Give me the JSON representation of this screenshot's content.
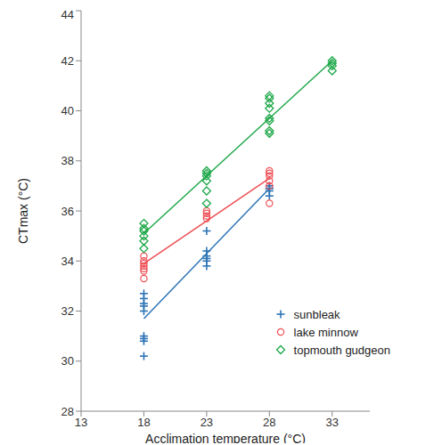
{
  "chart_data": {
    "type": "scatter",
    "x_label": "Acclimation temperature (°C)",
    "y_label": "CTmax (°C)",
    "xlim": [
      13,
      36
    ],
    "xticks": [
      13,
      18,
      23,
      28,
      33
    ],
    "ylim": [
      28,
      44
    ],
    "yticks": [
      28,
      30,
      32,
      34,
      36,
      38,
      40,
      42,
      44
    ],
    "grid": false,
    "legend": "lower right",
    "series": [
      {
        "name": "sunbleak",
        "color": "#2e75b6",
        "marker": "plus",
        "x": [
          18,
          18,
          18,
          18,
          18,
          18,
          18,
          18,
          18,
          23,
          23,
          23,
          23,
          23,
          23,
          28,
          28,
          28,
          28,
          28
        ],
        "values": [
          32.7,
          32.5,
          32.3,
          32.2,
          32.0,
          31.0,
          30.9,
          30.8,
          30.2,
          35.2,
          34.4,
          34.2,
          34.1,
          34.0,
          33.8,
          37.0,
          36.9,
          36.9,
          36.8,
          36.6
        ],
        "trend": {
          "x": [
            18,
            28
          ],
          "values": [
            31.7,
            36.9
          ]
        }
      },
      {
        "name": "lake minnow",
        "color": "#ee4f55",
        "marker": "circle",
        "x": [
          18,
          18,
          18,
          18,
          18,
          18,
          18,
          23,
          23,
          23,
          23,
          28,
          28,
          28,
          28,
          28,
          28
        ],
        "values": [
          34.2,
          34.0,
          33.9,
          33.8,
          33.7,
          33.6,
          33.3,
          36.0,
          35.9,
          35.8,
          35.7,
          37.6,
          37.5,
          37.4,
          37.2,
          37.0,
          36.3
        ],
        "trend": {
          "x": [
            18,
            28
          ],
          "values": [
            33.9,
            37.3
          ]
        }
      },
      {
        "name": "topmouth gudgeon",
        "color": "#1fa84a",
        "marker": "diamond",
        "x": [
          18,
          18,
          18,
          18,
          18,
          18,
          23,
          23,
          23,
          23,
          23,
          23,
          28,
          28,
          28,
          28,
          28,
          28,
          28,
          28,
          33,
          33,
          33,
          33
        ],
        "values": [
          35.5,
          35.3,
          35.2,
          35.0,
          34.8,
          34.5,
          37.6,
          37.5,
          37.4,
          37.2,
          36.8,
          36.3,
          40.6,
          40.5,
          40.3,
          40.1,
          39.7,
          39.6,
          39.2,
          39.1,
          42.0,
          41.9,
          41.8,
          41.6
        ],
        "trend": {
          "x": [
            18,
            33
          ],
          "values": [
            35.1,
            42.0
          ]
        }
      }
    ]
  }
}
